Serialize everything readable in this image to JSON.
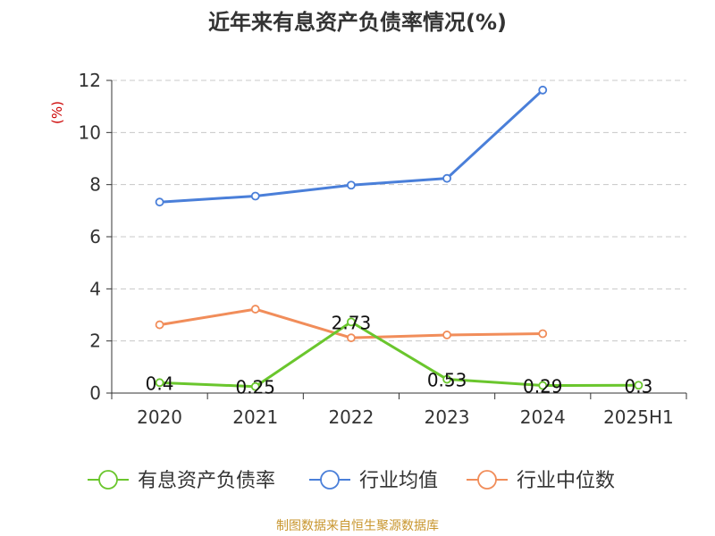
{
  "chart_data": {
    "type": "line",
    "title": "近年来有息资产负债率情况(%)",
    "ylabel": "(%)",
    "xlabel": "",
    "categories": [
      "2020",
      "2021",
      "2022",
      "2023",
      "2024",
      "2025H1"
    ],
    "ylim": [
      0,
      12
    ],
    "yticks": [
      0,
      2,
      4,
      6,
      8,
      10,
      12
    ],
    "grid": true,
    "legend_position": "bottom",
    "series": [
      {
        "name": "有息资产负债率",
        "color": "#6ac62d",
        "values": [
          0.4,
          0.25,
          2.73,
          0.53,
          0.29,
          0.3
        ],
        "labels": [
          "0.4",
          "0.25",
          "2.73",
          "0.53",
          "0.29",
          "0.3"
        ]
      },
      {
        "name": "行业均值",
        "color": "#4a7fd9",
        "values": [
          7.33,
          7.56,
          7.98,
          8.24,
          11.63,
          null
        ]
      },
      {
        "name": "行业中位数",
        "color": "#f18d5a",
        "values": [
          2.62,
          3.22,
          2.12,
          2.23,
          2.28,
          null
        ]
      }
    ]
  },
  "source": "制图数据来自恒生聚源数据库"
}
